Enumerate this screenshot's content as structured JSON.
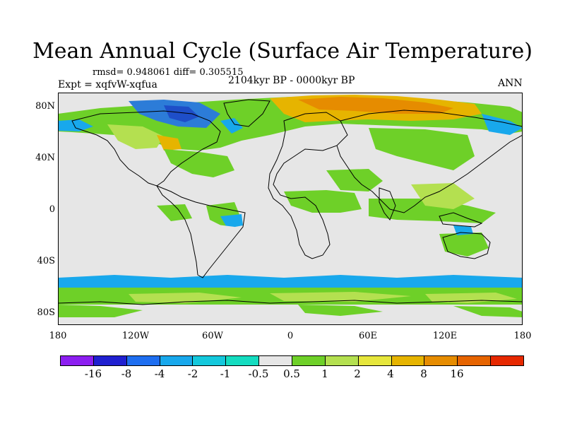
{
  "title": "Mean Annual Cycle (Surface Air Temperature)",
  "stats": "rmsd= 0.948061 diff= 0.305515",
  "experiment": "Expt = xqfvW-xqfua",
  "period": "2104kyr BP - 0000kyr BP",
  "season": "ANN",
  "lat_labels": [
    "80N",
    "40N",
    "0",
    "40S",
    "80S"
  ],
  "lon_labels": [
    "180",
    "120W",
    "60W",
    "0",
    "60E",
    "120E",
    "180"
  ],
  "colorbar": {
    "colors": [
      "#8c1ef0",
      "#2020d0",
      "#1e6ef0",
      "#18a8ec",
      "#14c8dc",
      "#14dcc0",
      "#e6e6e6",
      "#6ed028",
      "#b4e050",
      "#e6e63c",
      "#e6b400",
      "#e68c00",
      "#e66400",
      "#e62800"
    ],
    "labels": [
      "-16",
      "-8",
      "-4",
      "-2",
      "-1",
      "-0.5",
      "0.5",
      "1",
      "2",
      "4",
      "8",
      "16"
    ]
  },
  "colors": {
    "background": "#e6e6e6",
    "coastline": "#000000"
  }
}
